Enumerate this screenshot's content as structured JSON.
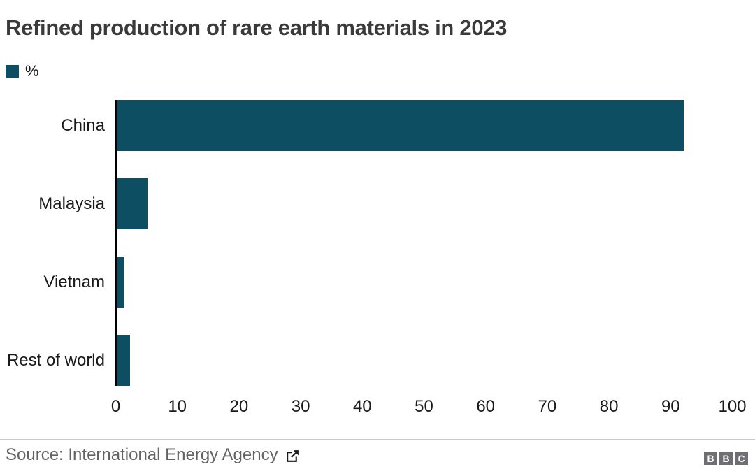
{
  "title": "Refined production of rare earth materials in 2023",
  "legend": {
    "label": "%",
    "swatch_color": "#0d4e62"
  },
  "chart_data": {
    "type": "bar",
    "orientation": "horizontal",
    "title": "Refined production of rare earth materials in 2023",
    "unit_label": "%",
    "categories": [
      "China",
      "Malaysia",
      "Vietnam",
      "Rest of world"
    ],
    "values": [
      92,
      5,
      1.3,
      2.2
    ],
    "xlim": [
      0,
      100
    ],
    "xticks": [
      0,
      10,
      20,
      30,
      40,
      50,
      60,
      70,
      80,
      90,
      100
    ],
    "xlabel": "",
    "ylabel": "",
    "grid": false,
    "legend_position": "top-left",
    "bar_color": "#0d4e62"
  },
  "footer": {
    "source_label": "Source: International Energy Agency",
    "external_link_icon": "box-arrow-top-right",
    "logo_letters": [
      "B",
      "B",
      "C"
    ],
    "logo_color": "#6e6e73"
  },
  "colors": {
    "bar": "#0d4e62",
    "axis": "#000000",
    "title_text": "#3a3a3a",
    "label_text": "#1a1a1a",
    "source_text": "#626262",
    "divider": "#c8c8c8",
    "background": "#ffffff"
  }
}
